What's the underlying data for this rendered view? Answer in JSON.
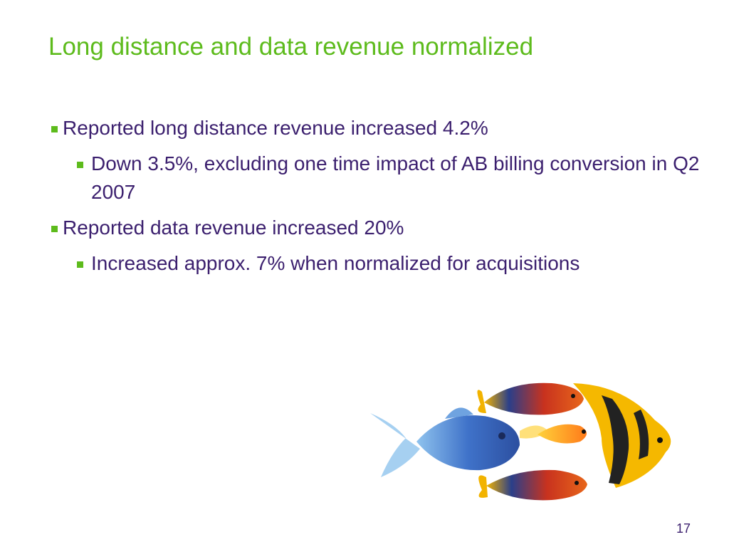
{
  "slide": {
    "title": "Long distance and data revenue normalized",
    "bullets": [
      {
        "text": "Reported long distance revenue increased 4.2%",
        "level": 1
      },
      {
        "text": "Down 3.5%, excluding one time impact of AB billing conversion in Q2 2007",
        "level": 2
      },
      {
        "text": "Reported data revenue increased 20%",
        "level": 1
      },
      {
        "text": "Increased approx. 7% when normalized for acquisitions",
        "level": 2
      }
    ],
    "page_number": "17",
    "image": {
      "icon": "tropical-fish-illustration"
    }
  },
  "colors": {
    "title": "#5dbb1c",
    "bullet_marker": "#5dbb1c",
    "body_text": "#3b1f6e"
  }
}
